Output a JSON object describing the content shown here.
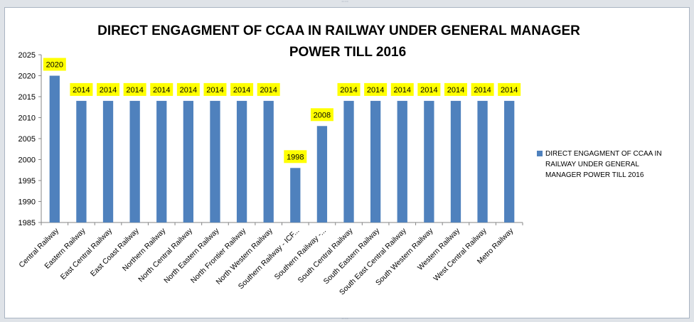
{
  "chart_data": {
    "type": "bar",
    "title": "DIRECT  ENGAGMENT OF CCAA IN RAILWAY UNDER GENERAL MANAGER POWER TILL 2016",
    "title_lines": [
      "DIRECT  ENGAGMENT OF CCAA IN RAILWAY UNDER GENERAL MANAGER",
      "POWER TILL 2016"
    ],
    "categories": [
      "Central Railway",
      "Eastern Railway",
      "East Central Railway",
      "East Coast Railway",
      "Northern Railway",
      "North Central  Railway",
      "North Eastern  Railway",
      "North Frontier  Railway",
      "North Western Railway",
      "Southern  Railway  - ICF...",
      "Southern  Railway  -...",
      "South Central Railway",
      "South Eastern Railway",
      "South East Central  Railway",
      "South Western Railway",
      "Western Railway",
      "West Central Railway",
      "Metro Railway"
    ],
    "series": [
      {
        "name": "DIRECT  ENGAGMENT OF CCAA IN RAILWAY UNDER GENERAL MANAGER POWER TILL 2016",
        "values": [
          2020,
          2014,
          2014,
          2014,
          2014,
          2014,
          2014,
          2014,
          2014,
          1998,
          2008,
          2014,
          2014,
          2014,
          2014,
          2014,
          2014,
          2014
        ],
        "data_labels": [
          "2020",
          "2014",
          "2014",
          "2014",
          "2014",
          "2014",
          "2014",
          "2014",
          "2014",
          "1998",
          "2008",
          "2014",
          "2014",
          "2014",
          "2014",
          "2014",
          "2014",
          "2014"
        ]
      }
    ],
    "legend_lines": [
      "DIRECT  ENGAGMENT OF CCAA IN",
      "RAILWAY UNDER GENERAL",
      "MANAGER POWER TILL 2016"
    ],
    "y_ticks": [
      "1985",
      "1990",
      "1995",
      "2000",
      "2005",
      "2010",
      "2015",
      "2020",
      "2025"
    ],
    "xlabel": "",
    "ylabel": "",
    "ylim": [
      1985,
      2025
    ],
    "grid": false,
    "legend_position": "right",
    "colors": {
      "bar": "#4f81bd",
      "label_bg": "#ffff00"
    }
  }
}
